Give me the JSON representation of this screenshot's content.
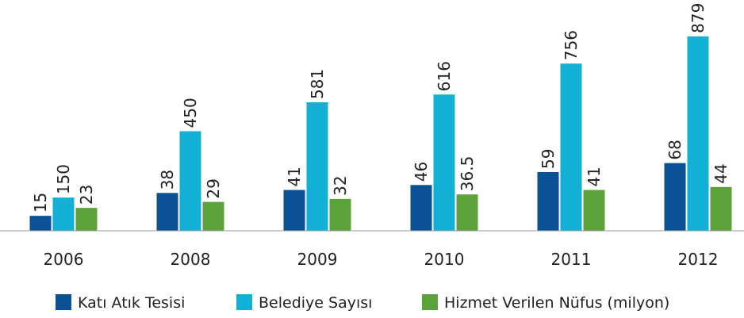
{
  "chart_data": {
    "type": "bar",
    "categories": [
      "2006",
      "2008",
      "2009",
      "2010",
      "2011",
      "2012"
    ],
    "series": [
      {
        "name": "Katı Atık Tesisi",
        "color": "#0a5196",
        "values": [
          15,
          38,
          41,
          46,
          59,
          68
        ]
      },
      {
        "name": "Belediye Sayısı",
        "color": "#12b0d4",
        "values": [
          150,
          450,
          581,
          616,
          756,
          879
        ],
        "axis": "y2"
      },
      {
        "name": "Hizmet Verilen Nüfus (milyon)",
        "color": "#5ca23a",
        "values": [
          23,
          29,
          32,
          36.5,
          41,
          44
        ]
      }
    ],
    "ylim": [
      0,
      200
    ],
    "y2lim": [
      0,
      900
    ],
    "legend": "bottom"
  }
}
